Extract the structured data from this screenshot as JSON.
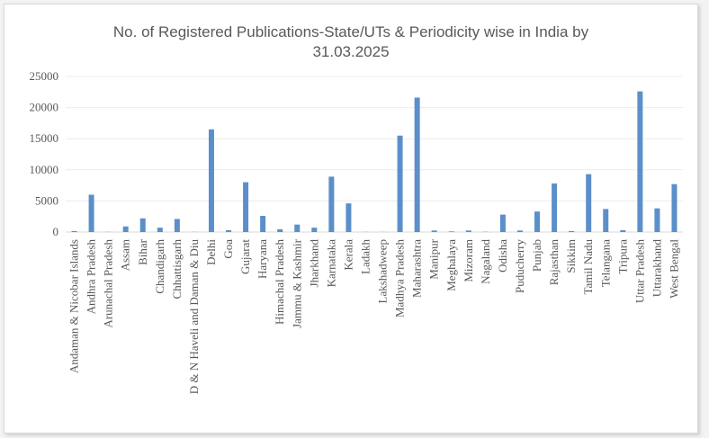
{
  "chart_data": {
    "type": "bar",
    "title_line1": "No. of Registered Publications-State/UTs & Periodicity wise in India by",
    "title_line2": "31.03.2025",
    "categories": [
      "Andaman & Nicobar Islands",
      "Andhra Pradesh",
      "Arunachal Pradesh",
      "Assam",
      "Bihar",
      "Chandigarh",
      "Chhattisgarh",
      "D & N Haveli and Daman & Diu",
      "Delhi",
      "Goa",
      "Gujarat",
      "Haryana",
      "Himachal Pradesh",
      "Jammu & Kashmir",
      "Jharkhand",
      "Karnataka",
      "Kerala",
      "Ladakh",
      "Lakshadweep",
      "Madhya Pradesh",
      "Maharashtra",
      "Manipur",
      "Meghalaya",
      "Mizoram",
      "Nagaland",
      "Odisha",
      "Puducherry",
      "Punjab",
      "Rajasthan",
      "Sikkim",
      "Tamil Nadu",
      "Telangana",
      "Tripura",
      "Uttar Pradesh",
      "Uttarakhand",
      "West Bengal"
    ],
    "values": [
      150,
      6000,
      20,
      900,
      2200,
      700,
      2100,
      20,
      16500,
      300,
      8000,
      2600,
      450,
      1200,
      700,
      8900,
      4600,
      20,
      20,
      15500,
      21600,
      250,
      100,
      250,
      40,
      2800,
      250,
      3300,
      7800,
      150,
      9300,
      3700,
      300,
      22600,
      3800,
      7700
    ],
    "yticks": [
      "0",
      "5000",
      "10000",
      "15000",
      "20000",
      "25000"
    ],
    "ylim": [
      0,
      25000
    ],
    "color": "#5b8fc9",
    "grid": true,
    "legend": "none"
  }
}
